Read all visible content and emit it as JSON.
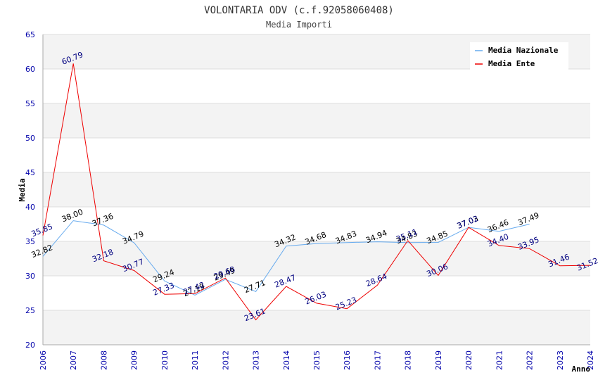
{
  "chart_data": {
    "type": "line",
    "title": "VOLONTARIA ODV (c.f.92058060408)",
    "subtitle": "Media Importi",
    "xlabel": "Anno",
    "ylabel": "Media",
    "ylim": [
      20,
      65
    ],
    "yticks": [
      20,
      25,
      30,
      35,
      40,
      45,
      50,
      55,
      60,
      65
    ],
    "x": [
      2006,
      2007,
      2008,
      2009,
      2010,
      2011,
      2012,
      2013,
      2014,
      2015,
      2016,
      2017,
      2018,
      2019,
      2020,
      2021,
      2022,
      2023,
      2024
    ],
    "x_tick_labels": [
      "2006",
      "2007",
      "2008",
      "2009",
      "2010",
      "2011",
      "2012",
      "2013",
      "2014",
      "2015",
      "2016",
      "2017",
      "2018",
      "2019",
      "2020",
      "2021",
      "2022",
      "2023",
      "2024"
    ],
    "grid": "horizontal bands",
    "legend_position": "top-right",
    "series": [
      {
        "name": "Media Nazionale",
        "color": "#66aaee",
        "label_color": "#000000",
        "values": [
          32.82,
          38.0,
          37.36,
          34.79,
          29.24,
          27.19,
          29.49,
          27.71,
          34.32,
          34.68,
          34.83,
          34.94,
          34.83,
          34.85,
          37.03,
          36.46,
          37.49,
          null,
          null
        ],
        "labels": [
          "32.82",
          "38.00",
          "37.36",
          "34.79",
          "29.24",
          "27.19",
          "29.49",
          "27.71",
          "34.32",
          "34.68",
          "34.83",
          "34.94",
          "34.83",
          "34.85",
          "37.03",
          "36.46",
          "37.49",
          "",
          ""
        ]
      },
      {
        "name": "Media Ente",
        "color": "#ee0000",
        "label_color": "#000080",
        "values": [
          35.85,
          60.79,
          32.18,
          30.77,
          27.33,
          27.42,
          29.68,
          23.61,
          28.47,
          26.03,
          25.23,
          28.64,
          35.11,
          30.06,
          37.02,
          34.4,
          33.95,
          31.46,
          31.52
        ],
        "labels": [
          "35.85",
          "60.79",
          "32.18",
          "30.77",
          "27.33",
          "27.42",
          "29.68",
          "23.61",
          "28.47",
          "26.03",
          "25.23",
          "28.64",
          "35.11",
          "30.06",
          "37.02",
          "34.40",
          "33.95",
          "31.46",
          "31.52"
        ]
      }
    ]
  }
}
